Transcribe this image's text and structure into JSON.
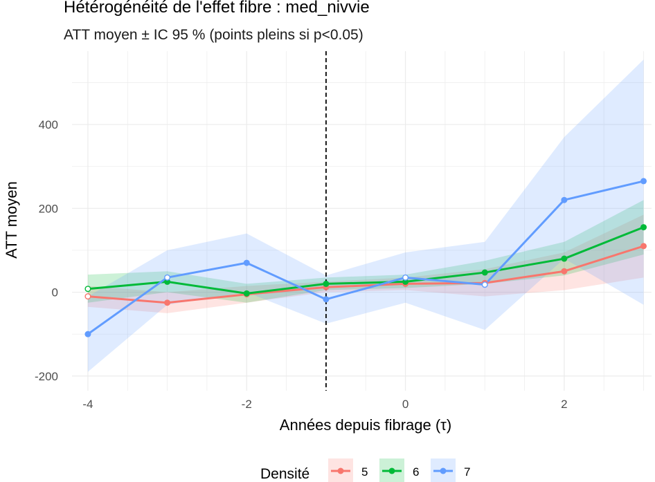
{
  "chart_data": {
    "type": "line",
    "title": "Hétérogénéité de l'effet fibre : med_nivvie",
    "subtitle": "ATT moyen ± IC 95 % (points pleins si p<0.05)",
    "xlabel": "Années depuis fibrage (τ)",
    "ylabel": "ATT moyen",
    "x": [
      -4,
      -3,
      -2,
      -1,
      0,
      1,
      2,
      3
    ],
    "x_ticks": [
      -4,
      -2,
      0,
      2
    ],
    "y_ticks": [
      -200,
      0,
      200,
      400
    ],
    "xlim": [
      -4.2,
      3.1
    ],
    "ylim": [
      -235,
      575
    ],
    "reference_line_x": -1,
    "grid": true,
    "legend": {
      "title": "Densité",
      "position": "bottom"
    },
    "series": [
      {
        "name": "5",
        "color": "#F8766D",
        "values": [
          -10,
          -25,
          -5,
          12,
          20,
          22,
          50,
          110
        ],
        "lower": [
          -35,
          -50,
          -25,
          0,
          5,
          -10,
          5,
          35
        ],
        "upper": [
          15,
          0,
          15,
          25,
          35,
          55,
          95,
          185
        ],
        "significant": [
          false,
          true,
          true,
          true,
          true,
          true,
          true,
          true
        ]
      },
      {
        "name": "6",
        "color": "#00BA38",
        "values": [
          8,
          25,
          -3,
          20,
          25,
          47,
          80,
          155
        ],
        "lower": [
          -25,
          0,
          -25,
          5,
          10,
          20,
          40,
          90
        ],
        "upper": [
          42,
          50,
          20,
          35,
          42,
          75,
          120,
          220
        ],
        "significant": [
          false,
          true,
          true,
          true,
          true,
          true,
          true,
          true
        ]
      },
      {
        "name": "7",
        "color": "#619CFF",
        "values": [
          -100,
          35,
          70,
          -17,
          35,
          18,
          220,
          265
        ],
        "lower": [
          -190,
          -30,
          0,
          -75,
          -25,
          -90,
          80,
          -30
        ],
        "upper": [
          -10,
          100,
          140,
          40,
          95,
          120,
          370,
          555
        ],
        "significant": [
          true,
          false,
          true,
          true,
          false,
          false,
          true,
          true
        ]
      }
    ]
  }
}
